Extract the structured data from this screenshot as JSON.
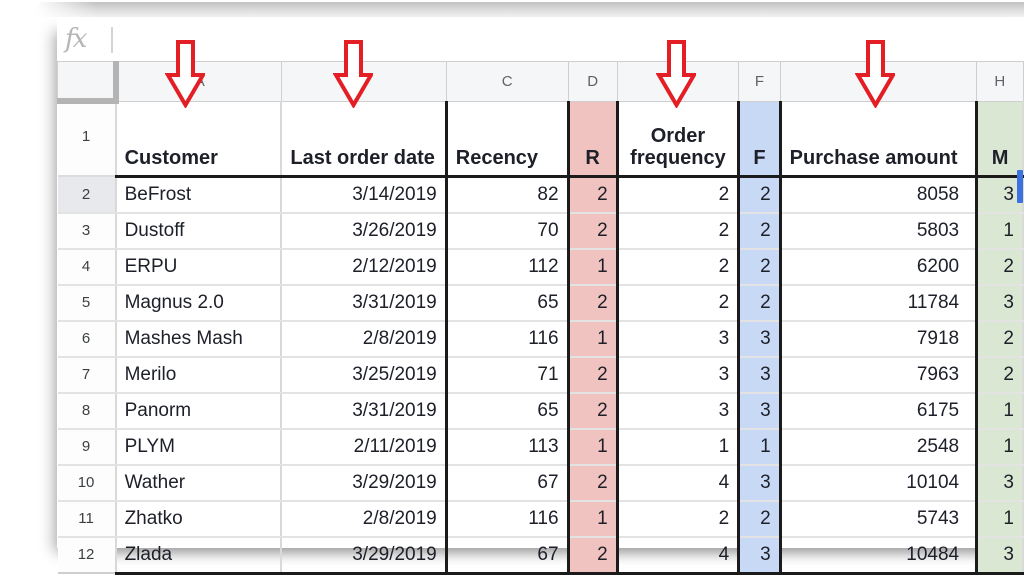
{
  "formula_bar": {
    "fx_label": "fx",
    "value": ""
  },
  "grid": {
    "column_letters": [
      "A",
      "B",
      "C",
      "D",
      "E",
      "F",
      "G",
      "H"
    ],
    "header_row": {
      "n": "1",
      "cells": [
        "Customer",
        "Last order date",
        "Recency",
        "R",
        "Order frequency",
        "F",
        "Purchase amount",
        "M"
      ]
    },
    "data_rows": [
      {
        "n": "2",
        "cells": [
          "BeFrost",
          "3/14/2019",
          "82",
          "2",
          "2",
          "2",
          "8058",
          "3"
        ]
      },
      {
        "n": "3",
        "cells": [
          "Dustoff",
          "3/26/2019",
          "70",
          "2",
          "2",
          "2",
          "5803",
          "1"
        ]
      },
      {
        "n": "4",
        "cells": [
          "ERPU",
          "2/12/2019",
          "112",
          "1",
          "2",
          "2",
          "6200",
          "2"
        ]
      },
      {
        "n": "5",
        "cells": [
          "Magnus 2.0",
          "3/31/2019",
          "65",
          "2",
          "2",
          "2",
          "11784",
          "3"
        ]
      },
      {
        "n": "6",
        "cells": [
          "Mashes Mash",
          "2/8/2019",
          "116",
          "1",
          "3",
          "3",
          "7918",
          "2"
        ]
      },
      {
        "n": "7",
        "cells": [
          "Merilo",
          "3/25/2019",
          "71",
          "2",
          "3",
          "3",
          "7963",
          "2"
        ]
      },
      {
        "n": "8",
        "cells": [
          "Panorm",
          "3/31/2019",
          "65",
          "2",
          "3",
          "3",
          "6175",
          "1"
        ]
      },
      {
        "n": "9",
        "cells": [
          "PLYM",
          "2/11/2019",
          "113",
          "1",
          "1",
          "1",
          "2548",
          "1"
        ]
      },
      {
        "n": "10",
        "cells": [
          "Wather",
          "3/29/2019",
          "67",
          "2",
          "4",
          "3",
          "10104",
          "3"
        ]
      },
      {
        "n": "11",
        "cells": [
          "Zhatko",
          "2/8/2019",
          "116",
          "1",
          "2",
          "2",
          "5743",
          "1"
        ]
      },
      {
        "n": "12",
        "cells": [
          "Zlada",
          "3/29/2019",
          "67",
          "2",
          "4",
          "3",
          "10484",
          "3"
        ]
      }
    ]
  },
  "colors": {
    "r_column_highlight": "#f0c2c0",
    "f_column_highlight": "#c8d9f5",
    "m_column_highlight": "#dae7d3",
    "selection_blue": "#3b72e0",
    "arrow_red": "#e31e24"
  },
  "annotations": {
    "arrows_over_columns": [
      "A",
      "B",
      "E",
      "G"
    ]
  }
}
